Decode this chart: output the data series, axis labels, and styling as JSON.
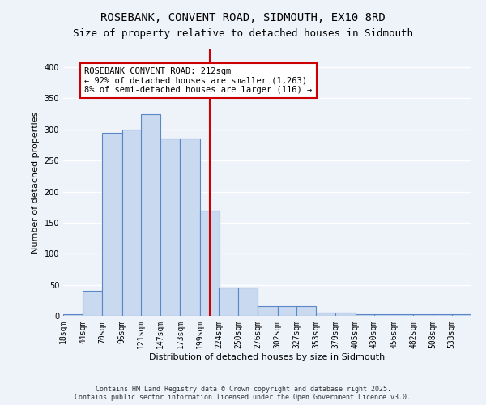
{
  "title": "ROSEBANK, CONVENT ROAD, SIDMOUTH, EX10 8RD",
  "subtitle": "Size of property relative to detached houses in Sidmouth",
  "xlabel": "Distribution of detached houses by size in Sidmouth",
  "ylabel": "Number of detached properties",
  "bin_labels": [
    "18sqm",
    "44sqm",
    "70sqm",
    "96sqm",
    "121sqm",
    "147sqm",
    "173sqm",
    "199sqm",
    "224sqm",
    "250sqm",
    "276sqm",
    "302sqm",
    "327sqm",
    "353sqm",
    "379sqm",
    "405sqm",
    "430sqm",
    "456sqm",
    "482sqm",
    "508sqm",
    "533sqm"
  ],
  "bin_edges": [
    18,
    44,
    70,
    96,
    121,
    147,
    173,
    199,
    224,
    250,
    276,
    302,
    327,
    353,
    379,
    405,
    430,
    456,
    482,
    508,
    533
  ],
  "bar_heights": [
    2,
    40,
    295,
    300,
    325,
    285,
    285,
    170,
    45,
    45,
    15,
    15,
    15,
    5,
    5,
    3,
    3,
    2,
    2,
    2,
    2
  ],
  "bar_color": "#c9d9f0",
  "bar_edge_color": "#5a87c5",
  "ref_line_x": 212,
  "ref_line_color": "#cc0000",
  "ylim": [
    0,
    430
  ],
  "yticks": [
    0,
    50,
    100,
    150,
    200,
    250,
    300,
    350,
    400
  ],
  "annotation_text": "ROSEBANK CONVENT ROAD: 212sqm\n← 92% of detached houses are smaller (1,263)\n8% of semi-detached houses are larger (116) →",
  "annotation_box_color": "#ffffff",
  "annotation_box_edge": "#cc0000",
  "footnote": "Contains HM Land Registry data © Crown copyright and database right 2025.\nContains public sector information licensed under the Open Government Licence v3.0.",
  "bg_color": "#eef2f9",
  "grid_color": "#ffffff",
  "title_fontsize": 10,
  "subtitle_fontsize": 9,
  "axis_label_fontsize": 8,
  "tick_fontsize": 7,
  "annotation_fontsize": 7.5,
  "footnote_fontsize": 6
}
